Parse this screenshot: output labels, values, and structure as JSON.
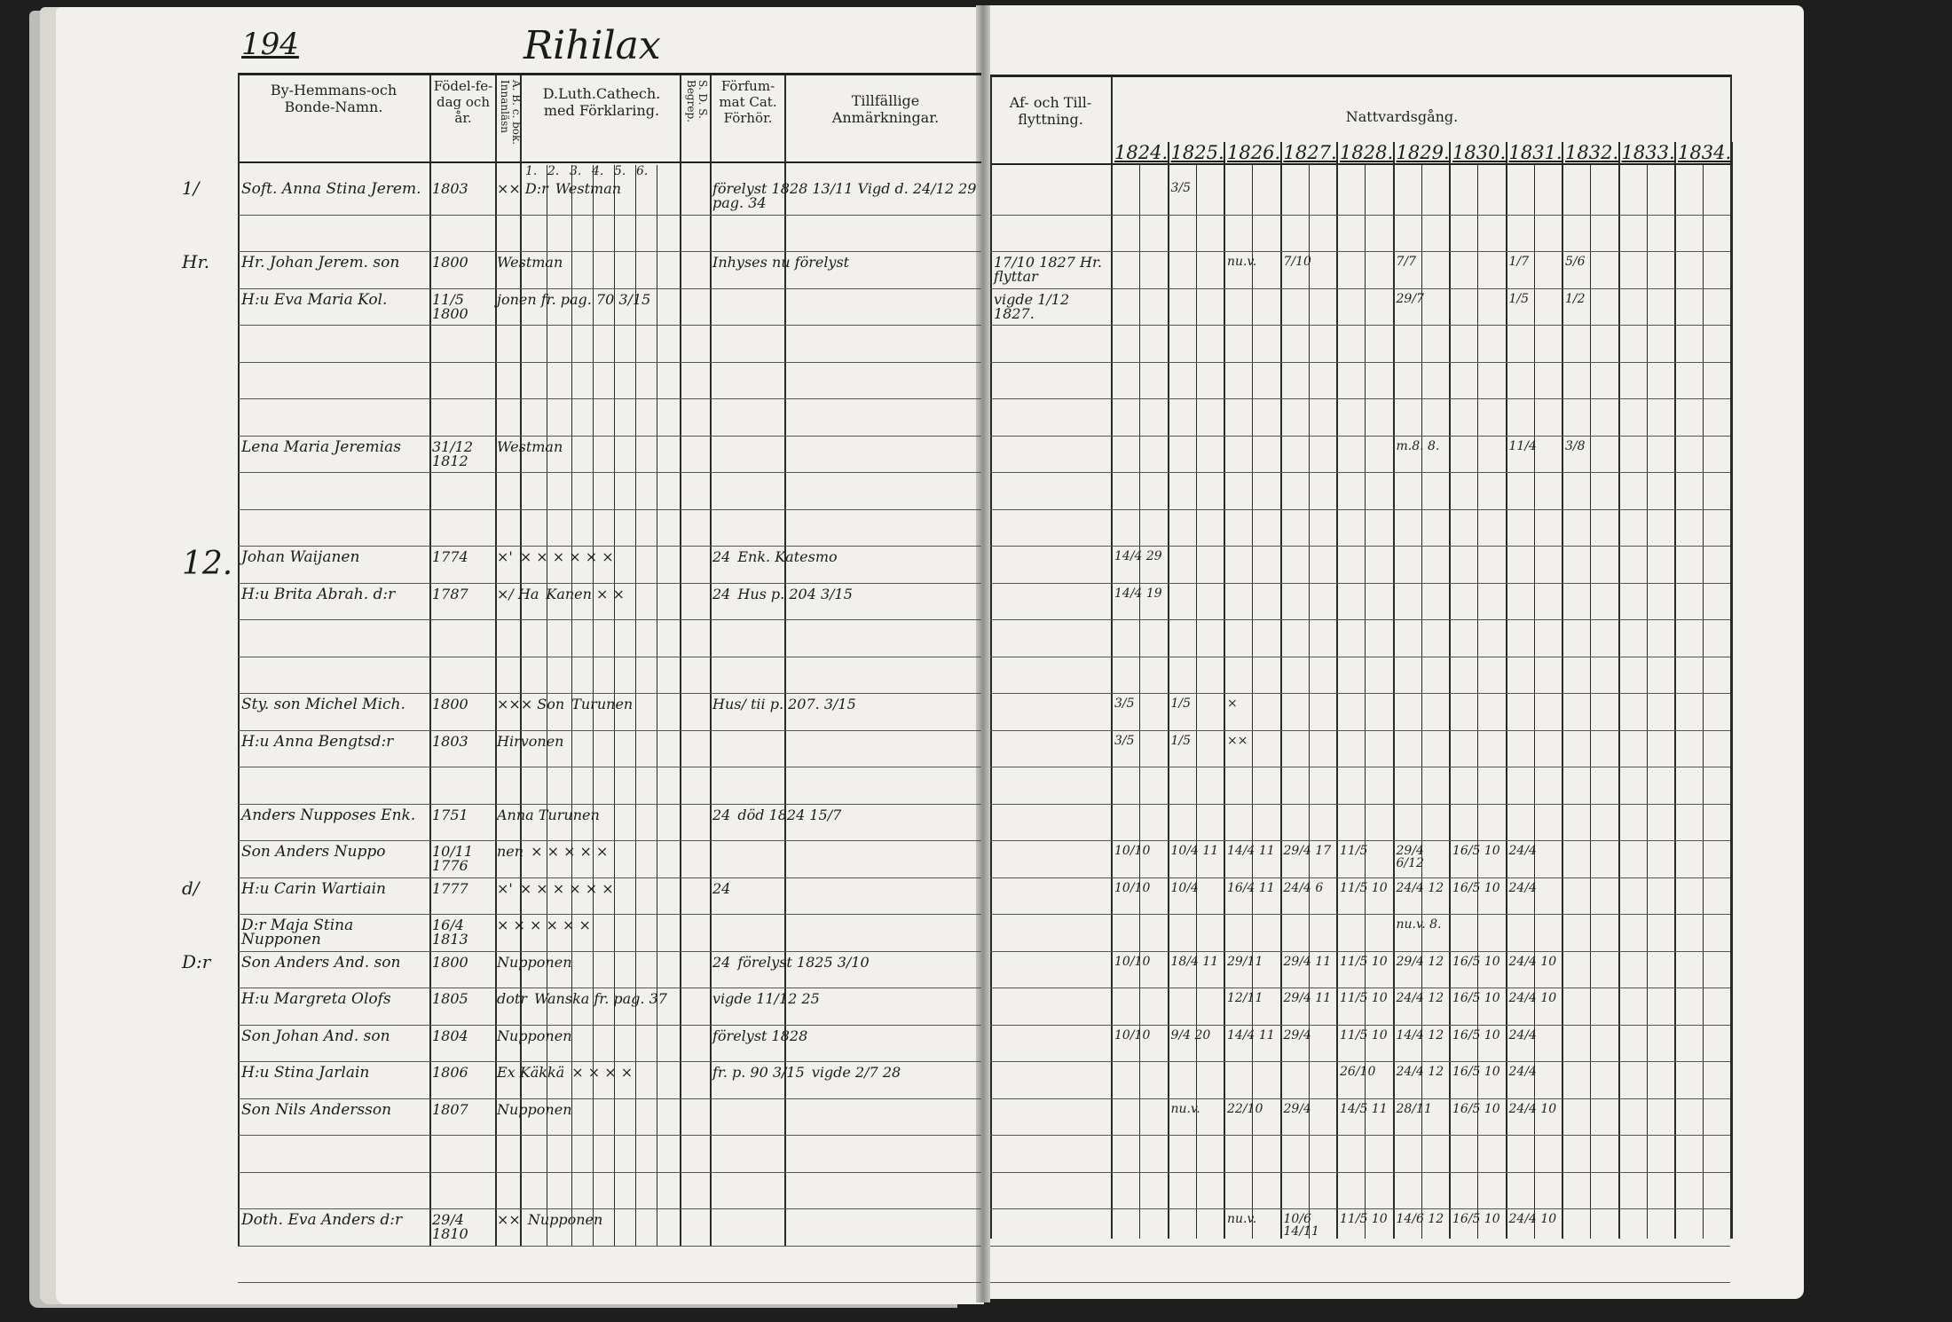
{
  "page_number": "194",
  "village": "Rihilax",
  "headers": {
    "name": "By-Hemmans-och Bonde-Namn.",
    "birth": "Födel-fe-dag och år.",
    "abc": "A. B. c. bok. Innanläsn",
    "catechism": "D.Luth.Cathech. med Förklaring.",
    "catechism_parts": [
      "1.",
      "2.",
      "3.",
      "4.",
      "5.",
      "6."
    ],
    "sds": "S. D. S. Begrep.",
    "missed": "Förfum-mat Cat. Förhör.",
    "remarks": "Tillfällige Anmärkningar.",
    "moving": "Af- och Till-flyttning.",
    "communion": "Nattvardsgång.",
    "years": [
      "1824.",
      "1825.",
      "1826.",
      "1827.",
      "1828.",
      "1829.",
      "1830.",
      "1831.",
      "1832.",
      "1833.",
      "1834."
    ]
  },
  "margin_marks": [
    {
      "row": 10,
      "text": "12."
    },
    {
      "row": 0,
      "text": "1/"
    },
    {
      "row": 2,
      "text": "Hr."
    },
    {
      "row": 19,
      "text": "d/"
    },
    {
      "row": 21,
      "text": "D:r"
    }
  ],
  "rows": [
    {
      "name": "Soft. Anna Stina Jerem.",
      "birth": "1803",
      "abc": "×× D:r",
      "cat": "Westman",
      "remark": "förelyst 1828 13/11 Vigd d. 24/12 29 pag. 34",
      "communion": [
        "",
        "3/5",
        "",
        "",
        "",
        "",
        "",
        "",
        "",
        "",
        ""
      ]
    },
    {
      "name": "",
      "birth": "",
      "abc": "",
      "cat": "",
      "remark": "",
      "communion": []
    },
    {
      "name": "Hr. Johan Jerem. son",
      "birth": "1800",
      "abc": "",
      "cat": "Westman",
      "remark": "Inhyses nu förelyst",
      "moving": "17/10 1827 Hr. flyttar",
      "communion": [
        "",
        "",
        "nu.v.",
        "7/10",
        "",
        "7/7",
        "",
        "1/7",
        "5/6",
        "",
        ""
      ]
    },
    {
      "name": "H:u Eva Maria Kol.",
      "birth": "11/5 1800",
      "abc": "",
      "cat": "jonen fr. pag. 70 3/15",
      "remark": "",
      "moving": "vigde 1/12 1827.",
      "communion": [
        "",
        "",
        "",
        "",
        "",
        "29/7",
        "",
        "1/5",
        "1/2",
        "",
        ""
      ]
    },
    {
      "name": "",
      "birth": "",
      "abc": "",
      "cat": "",
      "remark": "",
      "communion": []
    },
    {
      "name": "",
      "birth": "",
      "abc": "",
      "cat": "",
      "remark": "",
      "communion": []
    },
    {
      "name": "",
      "birth": "",
      "abc": "",
      "cat": "",
      "remark": "",
      "communion": []
    },
    {
      "name": "Lena Maria Jeremias",
      "birth": "31/12 1812",
      "abc": "",
      "cat": "Westman",
      "remark": "",
      "communion": [
        "",
        "",
        "",
        "",
        "",
        "m.8. 8.",
        "",
        "11/4",
        "3/8",
        "",
        ""
      ]
    },
    {
      "name": "",
      "birth": "",
      "abc": "",
      "cat": "",
      "remark": "",
      "communion": []
    },
    {
      "name": "",
      "birth": "",
      "abc": "",
      "cat": "",
      "remark": "",
      "communion": []
    },
    {
      "name": "Johan Waijanen",
      "birth": "1774",
      "abc": "×'",
      "cat": "× × × × × ×",
      "missed": "24",
      "remark": "Enk. Katesmo",
      "communion": [
        "14/4 29",
        "",
        "",
        "",
        "",
        "",
        "",
        "",
        "",
        "",
        ""
      ]
    },
    {
      "name": "H:u Brita Abrah. d:r",
      "birth": "1787",
      "abc": "×/ Ha",
      "cat": "Kanen × ×",
      "missed": "24",
      "remark": "Hus p. 204 3/15",
      "communion": [
        "14/4 19",
        "",
        "",
        "",
        "",
        "",
        "",
        "",
        "",
        "",
        ""
      ]
    },
    {
      "name": "",
      "birth": "",
      "abc": "",
      "cat": "",
      "remark": "",
      "communion": []
    },
    {
      "name": "",
      "birth": "",
      "abc": "",
      "cat": "",
      "remark": "",
      "communion": []
    },
    {
      "name": "Sty. son Michel Mich.",
      "birth": "1800",
      "abc": "××× Son",
      "cat": "Turunen",
      "remark": "Hus/ tii p. 207. 3/15",
      "communion": [
        "3/5",
        "1/5",
        "×",
        "",
        "",
        "",
        "",
        "",
        "",
        "",
        ""
      ]
    },
    {
      "name": "H:u Anna Bengtsd:r",
      "birth": "1803",
      "abc": "",
      "cat": "Hirvonen",
      "remark": "",
      "communion": [
        "3/5",
        "1/5",
        "××",
        "",
        "",
        "",
        "",
        "",
        "",
        "",
        ""
      ]
    },
    {
      "name": "",
      "birth": "",
      "abc": "",
      "cat": "",
      "remark": "",
      "communion": []
    },
    {
      "name": "Anders Nupposes Enk.",
      "birth": "1751",
      "abc": "",
      "cat": "Anna Turunen",
      "missed": "24",
      "remark": "död 1824 15/7",
      "communion": []
    },
    {
      "name": "Son Anders Nuppo",
      "birth": "10/11 1776",
      "abc": "nen",
      "cat": "× × × × ×",
      "remark": "",
      "communion": [
        "10/10",
        "10/4 11",
        "14/4 11",
        "29/4 17",
        "11/5",
        "29/4 6/12",
        "16/5 10",
        "24/4",
        "",
        "",
        ""
      ]
    },
    {
      "name": "H:u Carin Wartiain",
      "birth": "1777",
      "abc": "×'",
      "cat": "× × × × × ×",
      "missed": "24",
      "remark": "",
      "communion": [
        "10/10",
        "10/4",
        "16/4 11",
        "24/4 6",
        "11/5 10",
        "24/4 12",
        "16/5 10",
        "24/4",
        "",
        "",
        ""
      ]
    },
    {
      "name": "D:r Maja Stina Nupponen",
      "birth": "16/4 1813",
      "abc": "",
      "cat": "× × × × × ×",
      "remark": "",
      "communion": [
        "",
        "",
        "",
        "",
        "",
        "nu.v. 8.",
        "",
        "",
        "",
        "",
        ""
      ]
    },
    {
      "name": "Son Anders And. son",
      "birth": "1800",
      "abc": "",
      "cat": "Nupponen",
      "missed": "24",
      "remark": "förelyst 1825 3/10",
      "communion": [
        "10/10",
        "18/4 11",
        "29/11",
        "29/4 11",
        "11/5 10",
        "29/4 12",
        "16/5 10",
        "24/4 10",
        "",
        "",
        ""
      ]
    },
    {
      "name": "H:u Margreta Olofs",
      "birth": "1805",
      "abc": "dotr",
      "cat": "Wanska fr. pag. 37",
      "remark": "vigde 11/12 25",
      "communion": [
        "",
        "",
        "12/11",
        "29/4 11",
        "11/5 10",
        "24/4 12",
        "16/5 10",
        "24/4 10",
        "",
        "",
        ""
      ]
    },
    {
      "name": "Son Johan And. son",
      "birth": "1804",
      "abc": "",
      "cat": "Nupponen",
      "missed": "förelyst 1828",
      "remark": "",
      "communion": [
        "10/10",
        "9/4 20",
        "14/4 11",
        "29/4",
        "11/5 10",
        "14/4 12",
        "16/5 10",
        "24/4",
        "",
        "",
        ""
      ]
    },
    {
      "name": "H:u Stina Jarlain",
      "birth": "1806",
      "abc": "Ex Käkkä",
      "cat": "× × × ×",
      "missed": "fr. p. 90 3/15",
      "remark": "vigde 2/7 28",
      "communion": [
        "",
        "",
        "",
        "",
        "26/10",
        "24/4 12",
        "16/5 10",
        "24/4",
        "",
        "",
        ""
      ]
    },
    {
      "name": "Son Nils Andersson",
      "birth": "1807",
      "abc": "",
      "cat": "Nupponen",
      "remark": "",
      "communion": [
        "",
        "nu.v.",
        "22/10",
        "29/4",
        "14/5 11",
        "28/11",
        "16/5 10",
        "24/4 10",
        "",
        "",
        ""
      ]
    },
    {
      "name": "",
      "birth": "",
      "abc": "",
      "cat": "",
      "remark": "",
      "communion": []
    },
    {
      "name": "",
      "birth": "",
      "abc": "",
      "cat": "",
      "remark": "",
      "communion": []
    },
    {
      "name": "Doth. Eva Anders d:r",
      "birth": "29/4 1810",
      "abc": "××",
      "cat": "Nupponen",
      "remark": "",
      "communion": [
        "",
        "",
        "nu.v.",
        "10/6 14/11",
        "11/5 10",
        "14/6 12",
        "16/5 10",
        "24/4 10",
        "",
        "",
        ""
      ]
    }
  ]
}
